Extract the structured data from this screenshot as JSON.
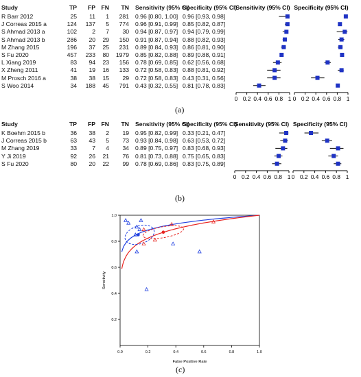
{
  "panel_a": {
    "caption": "(a)",
    "headers": {
      "study": "Study",
      "tp": "TP",
      "fp": "FP",
      "fn": "FN",
      "tn": "TN",
      "sens": "Sensitivity (95% CI)",
      "spec": "Specificity (95% CI)",
      "sens_plot": "Sensitivity (95% CI)",
      "spec_plot": "Specificity (95% CI)"
    },
    "rows": [
      {
        "study": "R Barr 2012",
        "tp": "25",
        "fp": "11",
        "fn": "1",
        "tn": "281",
        "sens": "0.96 [0.80, 1.00]",
        "spec": "0.96 [0.93, 0.98]"
      },
      {
        "study": "J Correas 2015 a",
        "tp": "124",
        "fp": "137",
        "fn": "5",
        "tn": "774",
        "sens": "0.96 [0.91, 0.99]",
        "spec": "0.85 [0.82, 0.87]"
      },
      {
        "study": "S Ahmad 2013 a",
        "tp": "102",
        "fp": "2",
        "fn": "7",
        "tn": "30",
        "sens": "0.94 [0.87, 0.97]",
        "spec": "0.94 [0.79, 0.99]"
      },
      {
        "study": "S Ahmad 2013 b",
        "tp": "286",
        "fp": "20",
        "fn": "29",
        "tn": "150",
        "sens": "0.91 [0.87, 0.94]",
        "spec": "0.88 [0.82, 0.93]"
      },
      {
        "study": "M Zhang 2015",
        "tp": "196",
        "fp": "37",
        "fn": "25",
        "tn": "231",
        "sens": "0.89 [0.84, 0.93]",
        "spec": "0.86 [0.81, 0.90]"
      },
      {
        "study": "S Fu 2020",
        "tp": "457",
        "fp": "233",
        "fn": "80",
        "tn": "1979",
        "sens": "0.85 [0.82, 0.88]",
        "spec": "0.89 [0.88, 0.91]"
      },
      {
        "study": "L Xiang 2019",
        "tp": "83",
        "fp": "94",
        "fn": "23",
        "tn": "156",
        "sens": "0.78 [0.69, 0.85]",
        "spec": "0.62 [0.56, 0.68]"
      },
      {
        "study": "X Zheng 2011",
        "tp": "41",
        "fp": "19",
        "fn": "16",
        "tn": "133",
        "sens": "0.72 [0.58, 0.83]",
        "spec": "0.88 [0.81, 0.92]"
      },
      {
        "study": "M Prosch 2016 a",
        "tp": "38",
        "fp": "38",
        "fn": "15",
        "tn": "29",
        "sens": "0.72 [0.58, 0.83]",
        "spec": "0.43 [0.31, 0.56]"
      },
      {
        "study": "S Woo 2014",
        "tp": "34",
        "fp": "188",
        "fn": "45",
        "tn": "791",
        "sens": "0.43 [0.32, 0.55]",
        "spec": "0.81 [0.78, 0.83]"
      }
    ],
    "axis_ticks": [
      "0",
      "0.2",
      "0.4",
      "0.6",
      "0.8",
      "1"
    ]
  },
  "panel_b": {
    "caption": "(b)",
    "headers": {
      "study": "Study",
      "tp": "TP",
      "fp": "FP",
      "fn": "FN",
      "tn": "TN",
      "sens": "Sensitivity (95% CI)",
      "spec": "Specificity (95% CI)",
      "sens_plot": "Sensitivity (95% CI)",
      "spec_plot": "Specificity (95% CI)"
    },
    "rows": [
      {
        "study": "K Boehm 2015 b",
        "tp": "36",
        "fp": "38",
        "fn": "2",
        "tn": "19",
        "sens": "0.95 [0.82, 0.99]",
        "spec": "0.33 [0.21, 0.47]"
      },
      {
        "study": "J Correas 2015 b",
        "tp": "63",
        "fp": "43",
        "fn": "5",
        "tn": "73",
        "sens": "0.93 [0.84, 0.98]",
        "spec": "0.63 [0.53, 0.72]"
      },
      {
        "study": "M Zhang 2019",
        "tp": "33",
        "fp": "7",
        "fn": "4",
        "tn": "34",
        "sens": "0.89 [0.75, 0.97]",
        "spec": "0.83 [0.68, 0.93]"
      },
      {
        "study": "Y Ji 2019",
        "tp": "92",
        "fp": "26",
        "fn": "21",
        "tn": "76",
        "sens": "0.81 [0.73, 0.88]",
        "spec": "0.75 [0.65, 0.83]"
      },
      {
        "study": "S Fu 2020",
        "tp": "80",
        "fp": "20",
        "fn": "22",
        "tn": "99",
        "sens": "0.78 [0.69, 0.86]",
        "spec": "0.83 [0.75, 0.89]"
      }
    ],
    "axis_ticks": [
      "0",
      "0.2",
      "0.4",
      "0.6",
      "0.8",
      "1"
    ]
  },
  "panel_c": {
    "caption": "(c)",
    "xlabel": "False Positive Rate",
    "ylabel": "Sensitivity",
    "x_ticks": [
      "0.0",
      "0.2",
      "0.4",
      "0.6",
      "0.8",
      "1.0"
    ],
    "y_ticks": [
      "1.0",
      "0.8",
      "0.6",
      "0.4",
      "0.2"
    ]
  },
  "colors": {
    "marker": "#1f33c4",
    "blue": "#1f3fe0",
    "red": "#e8231f"
  },
  "chart_data": [
    {
      "type": "forest",
      "panel": "a",
      "series": [
        {
          "metric": "sensitivity",
          "values": [
            0.96,
            0.96,
            0.94,
            0.91,
            0.89,
            0.85,
            0.78,
            0.72,
            0.72,
            0.43
          ],
          "lower": [
            0.8,
            0.91,
            0.87,
            0.87,
            0.84,
            0.82,
            0.69,
            0.58,
            0.58,
            0.32
          ],
          "upper": [
            1.0,
            0.99,
            0.97,
            0.94,
            0.93,
            0.88,
            0.85,
            0.83,
            0.83,
            0.55
          ]
        },
        {
          "metric": "specificity",
          "values": [
            0.96,
            0.85,
            0.94,
            0.88,
            0.86,
            0.89,
            0.62,
            0.88,
            0.43,
            0.81
          ],
          "lower": [
            0.93,
            0.82,
            0.79,
            0.82,
            0.81,
            0.88,
            0.56,
            0.81,
            0.31,
            0.78
          ],
          "upper": [
            0.98,
            0.87,
            0.99,
            0.93,
            0.9,
            0.91,
            0.68,
            0.92,
            0.56,
            0.83
          ]
        }
      ],
      "xlim": [
        0,
        1
      ]
    },
    {
      "type": "forest",
      "panel": "b",
      "series": [
        {
          "metric": "sensitivity",
          "values": [
            0.95,
            0.93,
            0.89,
            0.81,
            0.78
          ],
          "lower": [
            0.82,
            0.84,
            0.75,
            0.73,
            0.69
          ],
          "upper": [
            0.99,
            0.98,
            0.97,
            0.88,
            0.86
          ]
        },
        {
          "metric": "specificity",
          "values": [
            0.33,
            0.63,
            0.83,
            0.75,
            0.83
          ],
          "lower": [
            0.21,
            0.53,
            0.68,
            0.65,
            0.75
          ],
          "upper": [
            0.47,
            0.72,
            0.93,
            0.83,
            0.89
          ]
        }
      ],
      "xlim": [
        0,
        1
      ]
    },
    {
      "type": "scatter",
      "panel": "c",
      "xlabel": "False Positive Rate",
      "ylabel": "Sensitivity",
      "xlim": [
        0,
        1
      ],
      "ylim": [
        0,
        1
      ],
      "points": [
        {
          "x": 0.04,
          "y": 0.96
        },
        {
          "x": 0.15,
          "y": 0.96
        },
        {
          "x": 0.06,
          "y": 0.94
        },
        {
          "x": 0.12,
          "y": 0.91
        },
        {
          "x": 0.14,
          "y": 0.89
        },
        {
          "x": 0.11,
          "y": 0.85
        },
        {
          "x": 0.38,
          "y": 0.78
        },
        {
          "x": 0.12,
          "y": 0.72
        },
        {
          "x": 0.57,
          "y": 0.72
        },
        {
          "x": 0.19,
          "y": 0.43
        },
        {
          "x": 0.67,
          "y": 0.95
        },
        {
          "x": 0.37,
          "y": 0.93
        },
        {
          "x": 0.17,
          "y": 0.89
        },
        {
          "x": 0.25,
          "y": 0.81
        },
        {
          "x": 0.17,
          "y": 0.78
        }
      ],
      "summary_points": [
        {
          "x": 0.13,
          "y": 0.85
        },
        {
          "x": 0.31,
          "y": 0.87
        }
      ]
    }
  ]
}
